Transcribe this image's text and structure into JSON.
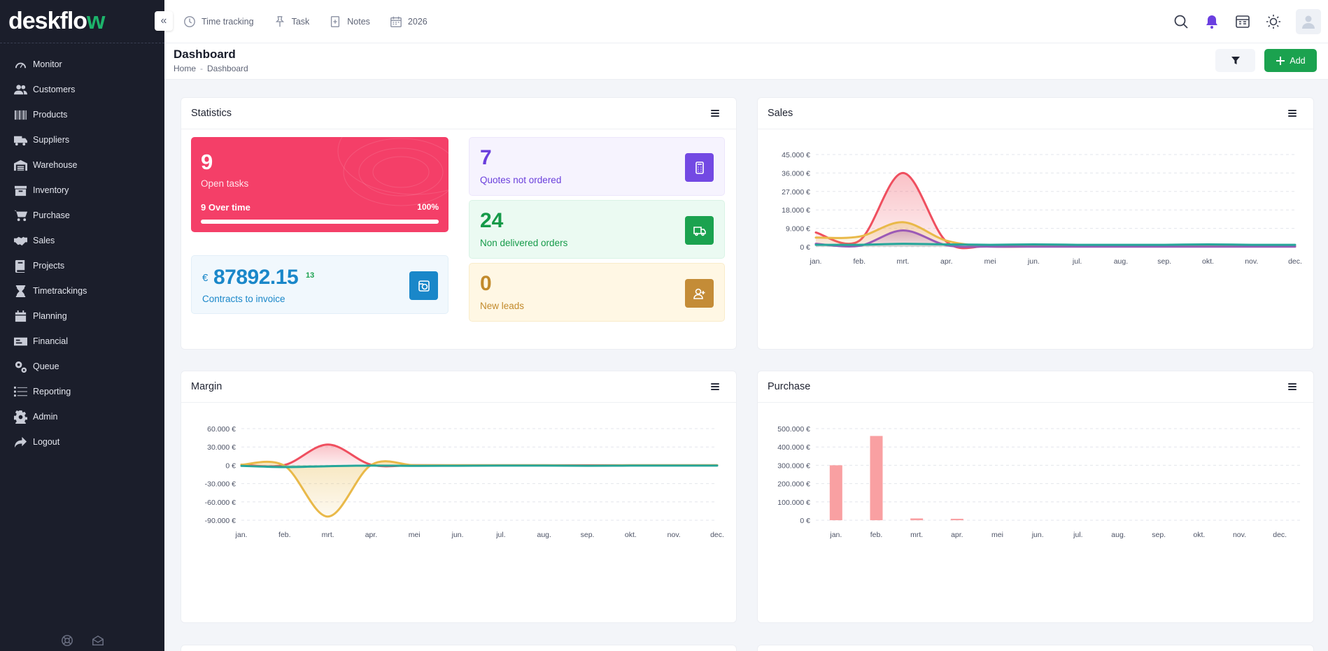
{
  "app": {
    "logo_main": "deskflo",
    "logo_accent": "w"
  },
  "sidebar": {
    "items": [
      {
        "label": "Monitor",
        "icon": "gauge-icon"
      },
      {
        "label": "Customers",
        "icon": "users-icon"
      },
      {
        "label": "Products",
        "icon": "barcode-icon"
      },
      {
        "label": "Suppliers",
        "icon": "truck-icon"
      },
      {
        "label": "Warehouse",
        "icon": "warehouse-icon"
      },
      {
        "label": "Inventory",
        "icon": "box-icon"
      },
      {
        "label": "Purchase",
        "icon": "cart-icon"
      },
      {
        "label": "Sales",
        "icon": "handshake-icon"
      },
      {
        "label": "Projects",
        "icon": "book-icon"
      },
      {
        "label": "Timetrackings",
        "icon": "hourglass-icon"
      },
      {
        "label": "Planning",
        "icon": "calendar-icon"
      },
      {
        "label": "Financial",
        "icon": "money-icon"
      },
      {
        "label": "Queue",
        "icon": "gears-icon"
      },
      {
        "label": "Reporting",
        "icon": "list-icon"
      },
      {
        "label": "Admin",
        "icon": "gear-icon"
      },
      {
        "label": "Logout",
        "icon": "logout-icon"
      }
    ]
  },
  "topbar": {
    "time_tracking": "Time tracking",
    "task": "Task",
    "notes": "Notes",
    "year": "2026"
  },
  "header": {
    "title": "Dashboard",
    "breadcrumb_home": "Home",
    "breadcrumb_sep": "-",
    "breadcrumb_current": "Dashboard",
    "add_label": "Add"
  },
  "statistics": {
    "title": "Statistics",
    "open_tasks": {
      "value": "9",
      "label": "Open tasks",
      "overtime": "9 Over time",
      "percent_label": "100%",
      "progress": 100
    },
    "contracts": {
      "currency": "€",
      "amount": "87892.15",
      "count": "13",
      "label": "Contracts to invoice"
    },
    "quotes": {
      "value": "7",
      "label": "Quotes not ordered"
    },
    "orders": {
      "value": "24",
      "label": "Non delivered orders"
    },
    "leads": {
      "value": "0",
      "label": "New leads"
    }
  },
  "months": [
    "jan.",
    "feb.",
    "mrt.",
    "apr.",
    "mei",
    "jun.",
    "jul.",
    "aug.",
    "sep.",
    "okt.",
    "nov.",
    "dec."
  ],
  "colors": {
    "red": "#ef4f5f",
    "yellow": "#e9b949",
    "purple": "#9b59b6",
    "teal": "#26a69a",
    "bar": "#f9a0a2",
    "accent": "#1ba24f"
  },
  "chart_data": [
    {
      "title": "Sales",
      "type": "area",
      "categories": [
        "jan.",
        "feb.",
        "mrt.",
        "apr.",
        "mei",
        "jun.",
        "jul.",
        "aug.",
        "sep.",
        "okt.",
        "nov.",
        "dec."
      ],
      "ylim": [
        0,
        45000
      ],
      "yticks": [
        "45.000 €",
        "36.000 €",
        "27.000 €",
        "18.000 €",
        "9.000 €",
        "0 €"
      ],
      "series": [
        {
          "color": "#ef4f5f",
          "values": [
            7000,
            3000,
            36000,
            2500,
            500,
            300,
            300,
            300,
            300,
            300,
            300,
            300
          ]
        },
        {
          "color": "#e9b949",
          "values": [
            4500,
            5000,
            12000,
            3000,
            200,
            200,
            200,
            200,
            200,
            200,
            200,
            200
          ]
        },
        {
          "color": "#9b59b6",
          "values": [
            1500,
            500,
            8000,
            800,
            100,
            100,
            100,
            100,
            100,
            100,
            100,
            100
          ]
        },
        {
          "color": "#26a69a",
          "values": [
            1000,
            1000,
            1500,
            1200,
            1000,
            1200,
            1000,
            1000,
            1000,
            1200,
            1000,
            1000
          ]
        }
      ]
    },
    {
      "title": "Margin",
      "type": "area",
      "categories": [
        "jan.",
        "feb.",
        "mrt.",
        "apr.",
        "mei",
        "jun.",
        "jul.",
        "aug.",
        "sep.",
        "okt.",
        "nov.",
        "dec."
      ],
      "ylim": [
        -90000,
        60000
      ],
      "yticks": [
        "60.000 €",
        "30.000 €",
        "0 €",
        "-30.000 €",
        "-60.000 €",
        "-90.000 €"
      ],
      "series": [
        {
          "color": "#ef4f5f",
          "values": [
            1000,
            500,
            34000,
            1000,
            200,
            0,
            0,
            0,
            0,
            0,
            0,
            0
          ]
        },
        {
          "color": "#e9b949",
          "values": [
            1000,
            -1000,
            -84000,
            500,
            0,
            0,
            0,
            0,
            -500,
            0,
            0,
            0
          ]
        },
        {
          "color": "#26a69a",
          "values": [
            -1000,
            -3000,
            -1500,
            -500,
            -1000,
            -800,
            -600,
            -500,
            -800,
            -600,
            -500,
            -500
          ]
        }
      ]
    },
    {
      "title": "Purchase",
      "type": "bar",
      "categories": [
        "jan.",
        "feb.",
        "mrt.",
        "apr.",
        "mei",
        "jun.",
        "jul.",
        "aug.",
        "sep.",
        "okt.",
        "nov.",
        "dec."
      ],
      "ylim": [
        0,
        500000
      ],
      "yticks": [
        "500.000 €",
        "400.000 €",
        "300.000 €",
        "200.000 €",
        "100.000 €",
        "0 €"
      ],
      "values": [
        300000,
        460000,
        10000,
        8000,
        0,
        0,
        0,
        0,
        0,
        0,
        0,
        0
      ]
    }
  ]
}
